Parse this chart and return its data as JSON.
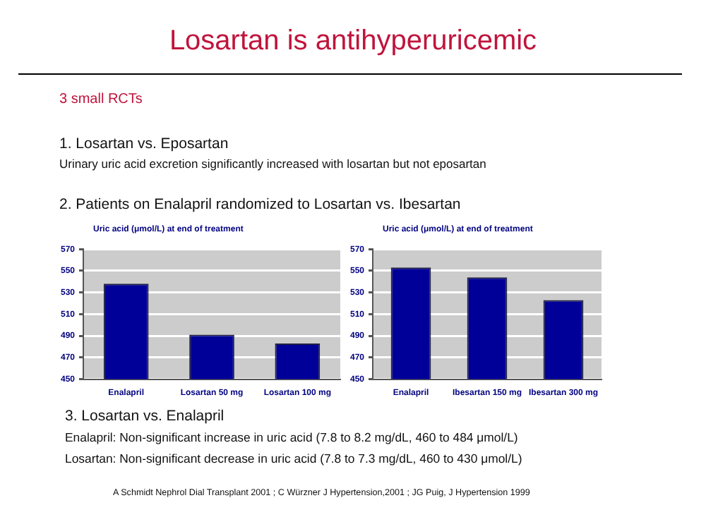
{
  "chart_data": [
    {
      "type": "bar",
      "title": "Uric acid (μmol/L) at end of treatment",
      "categories": [
        "Enalapril",
        "Losartan 50 mg",
        "Losartan 100 mg"
      ],
      "values": [
        538,
        491,
        483
      ],
      "color": "#000099",
      "ylim": [
        450,
        570
      ],
      "yticks": [
        450,
        470,
        490,
        510,
        530,
        550,
        570
      ],
      "grid": "y",
      "legend": false,
      "annotations": [
        "Losartan is antihyperuricemic",
        "3 small RCTs",
        "1.  Losartan vs. Eposartan",
        "Urinary uric acid excretion significantly increased with losartan but not eposartan",
        "2.  Patients on Enalapril randomized to Losartan vs. Ibesartan"
      ]
    },
    {
      "type": "bar",
      "title": "Uric acid (μmol/L) at end of treatment",
      "categories": [
        "Enalapril",
        "Ibesartan 150 mg",
        "Ibesartan 300 mg"
      ],
      "values": [
        553,
        544,
        523
      ],
      "color": "#000099",
      "ylim": [
        450,
        570
      ],
      "yticks": [
        450,
        470,
        490,
        510,
        530,
        550,
        570
      ],
      "grid": "y",
      "legend": false,
      "annotations": [
        "3. Losartan vs. Enalapril",
        "Enalapril: Non-significant increase in uric acid (7.8 to 8.2 mg/dL, 460 to 484 μmol/L)",
        "Losartan: Non-significant decrease in uric acid (7.8 to 7.3 mg/dL, 460 to 430 μmol/L)",
        "A Schmidt Nephrol Dial Transplant 2001 ; C Würzner J Hypertension,2001 ; JG Puig, J Hypertension 1999"
      ]
    }
  ]
}
